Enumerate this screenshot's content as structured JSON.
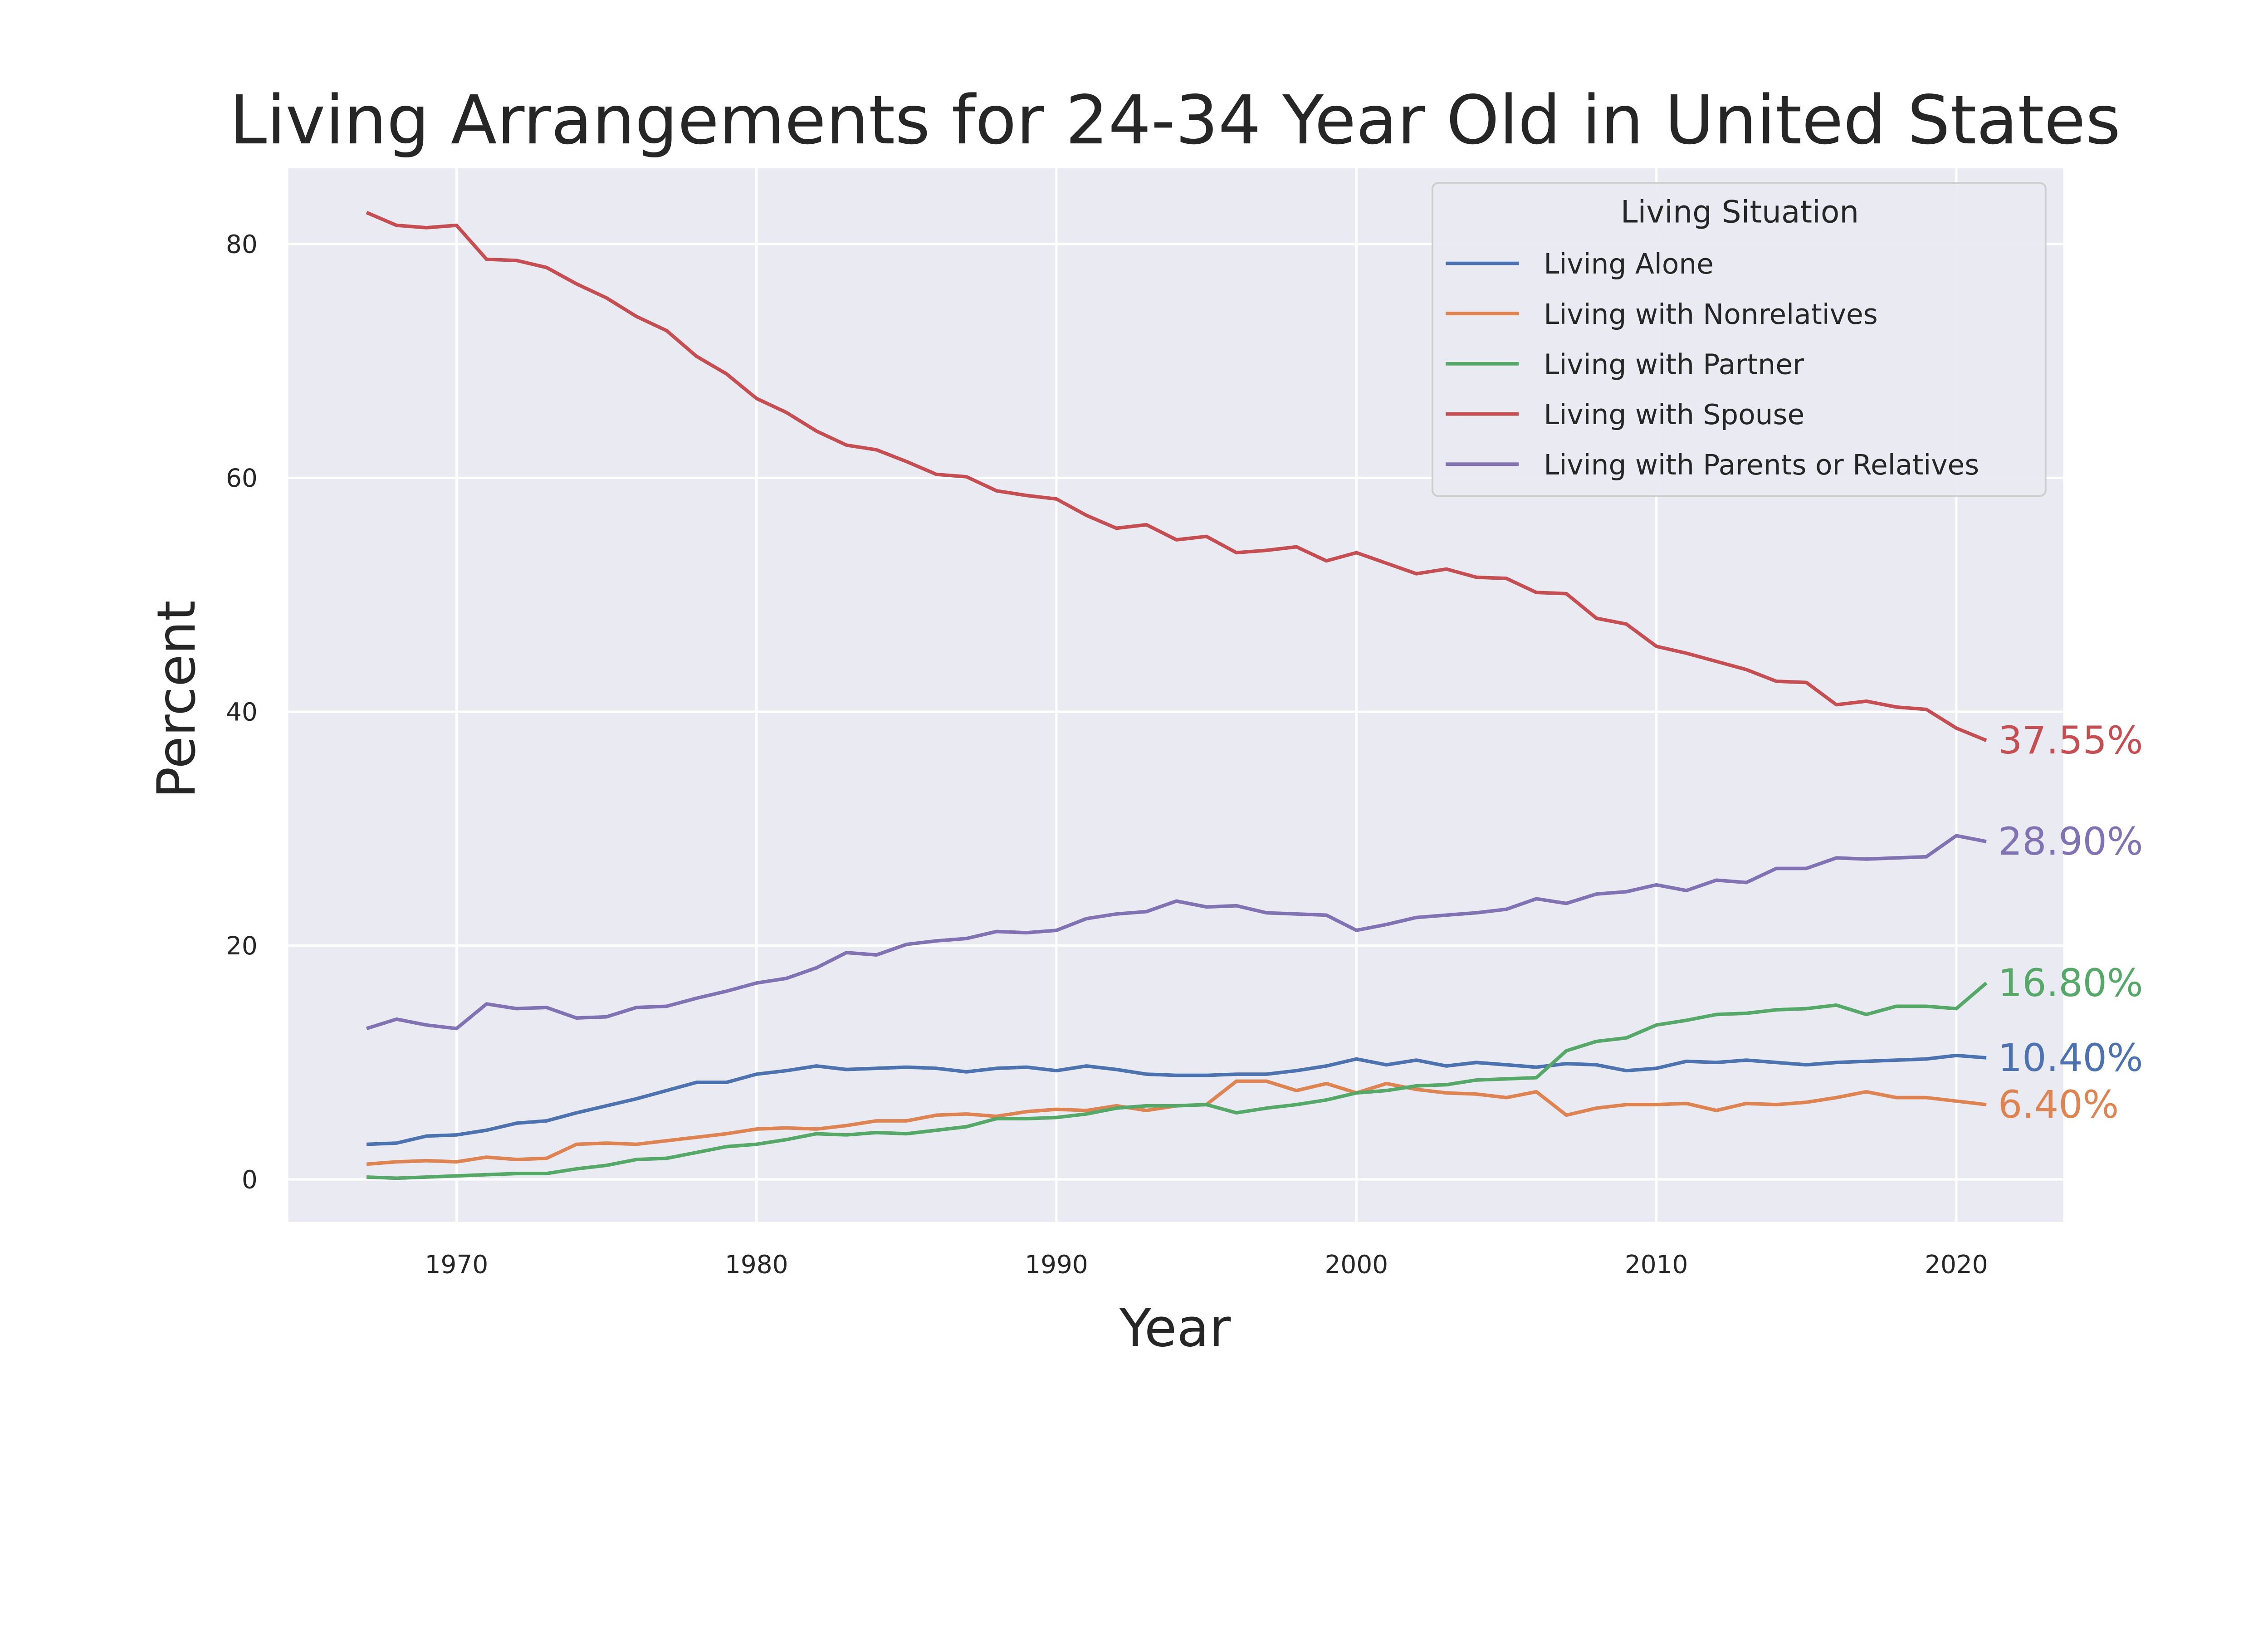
{
  "chart_data": {
    "type": "line",
    "title": "Living Arrangements for 24-34 Year Old in United States",
    "xlabel": "Year",
    "ylabel": "Percent",
    "xlim": [
      1964,
      2024
    ],
    "ylim": [
      -4,
      87
    ],
    "xticks": [
      1970,
      1980,
      1990,
      2000,
      2010,
      2020
    ],
    "yticks": [
      0,
      20,
      40,
      60,
      80
    ],
    "grid": true,
    "background": "#EAEAF2",
    "legend": {
      "title": "Living Situation",
      "placement": "top-right"
    },
    "x_start": 1967,
    "series": [
      {
        "name": "Living Alone",
        "color": "#4C72B0",
        "end_label": "10.40%",
        "values": [
          3.0,
          3.1,
          3.7,
          3.8,
          4.2,
          4.8,
          5.0,
          5.7,
          6.3,
          6.9,
          7.6,
          8.3,
          8.3,
          9.0,
          9.3,
          9.7,
          9.4,
          9.5,
          9.6,
          9.5,
          9.2,
          9.5,
          9.6,
          9.3,
          9.7,
          9.4,
          9.0,
          8.9,
          8.9,
          9.0,
          9.0,
          9.3,
          9.7,
          10.3,
          9.8,
          10.2,
          9.7,
          10.0,
          9.8,
          9.6,
          9.9,
          9.8,
          9.3,
          9.5,
          10.1,
          10.0,
          10.2,
          10.0,
          9.8,
          10.0,
          10.1,
          10.2,
          10.3,
          10.6,
          10.4
        ]
      },
      {
        "name": "Living with Nonrelatives",
        "color": "#DD8452",
        "end_label": "6.40%",
        "values": [
          1.3,
          1.5,
          1.6,
          1.5,
          1.9,
          1.7,
          1.8,
          3.0,
          3.1,
          3.0,
          3.3,
          3.6,
          3.9,
          4.3,
          4.4,
          4.3,
          4.6,
          5.0,
          5.0,
          5.5,
          5.6,
          5.4,
          5.8,
          6.0,
          5.9,
          6.3,
          5.9,
          6.3,
          6.4,
          8.4,
          8.4,
          7.6,
          8.2,
          7.4,
          8.2,
          7.7,
          7.4,
          7.3,
          7.0,
          7.5,
          5.5,
          6.1,
          6.4,
          6.4,
          6.5,
          5.9,
          6.5,
          6.4,
          6.6,
          7.0,
          7.5,
          7.0,
          7.0,
          6.7,
          6.4
        ]
      },
      {
        "name": "Living with Partner",
        "color": "#55A868",
        "end_label": "16.80%",
        "values": [
          0.2,
          0.1,
          0.2,
          0.3,
          0.4,
          0.5,
          0.5,
          0.9,
          1.2,
          1.7,
          1.8,
          2.3,
          2.8,
          3.0,
          3.4,
          3.9,
          3.8,
          4.0,
          3.9,
          4.2,
          4.5,
          5.2,
          5.2,
          5.3,
          5.6,
          6.1,
          6.3,
          6.3,
          6.4,
          5.7,
          6.1,
          6.4,
          6.8,
          7.4,
          7.6,
          8.0,
          8.1,
          8.5,
          8.6,
          8.7,
          11.0,
          11.8,
          12.1,
          13.2,
          13.6,
          14.1,
          14.2,
          14.5,
          14.6,
          14.9,
          14.1,
          14.8,
          14.8,
          14.6,
          16.8
        ]
      },
      {
        "name": "Living with Spouse",
        "color": "#C44E52",
        "end_label": "37.55%",
        "values": [
          82.7,
          81.6,
          81.4,
          81.6,
          78.7,
          78.6,
          78.0,
          76.6,
          75.4,
          73.8,
          72.6,
          70.4,
          68.9,
          66.8,
          65.6,
          64.0,
          62.8,
          62.4,
          61.4,
          60.3,
          60.1,
          58.9,
          58.5,
          58.2,
          56.8,
          55.7,
          56.0,
          54.7,
          55.0,
          53.6,
          53.8,
          54.1,
          52.9,
          53.6,
          52.7,
          51.8,
          52.2,
          51.5,
          51.4,
          50.2,
          50.1,
          48.0,
          47.5,
          45.6,
          45.0,
          44.3,
          43.6,
          42.6,
          42.5,
          40.6,
          40.9,
          40.4,
          40.2,
          38.6,
          37.55
        ]
      },
      {
        "name": "Living with Parents or Relatives",
        "color": "#8172B3",
        "end_label": "28.90%",
        "values": [
          12.9,
          13.7,
          13.2,
          12.9,
          15.0,
          14.6,
          14.7,
          13.8,
          13.9,
          14.7,
          14.8,
          15.5,
          16.1,
          16.8,
          17.2,
          18.1,
          19.4,
          19.2,
          20.1,
          20.4,
          20.6,
          21.2,
          21.1,
          21.3,
          22.3,
          22.7,
          22.9,
          23.8,
          23.3,
          23.4,
          22.8,
          22.7,
          22.6,
          21.3,
          21.8,
          22.4,
          22.6,
          22.8,
          23.1,
          24.0,
          23.6,
          24.4,
          24.6,
          25.2,
          24.7,
          25.6,
          25.4,
          26.6,
          26.6,
          27.5,
          27.4,
          27.5,
          27.6,
          29.4,
          28.9
        ]
      }
    ]
  }
}
